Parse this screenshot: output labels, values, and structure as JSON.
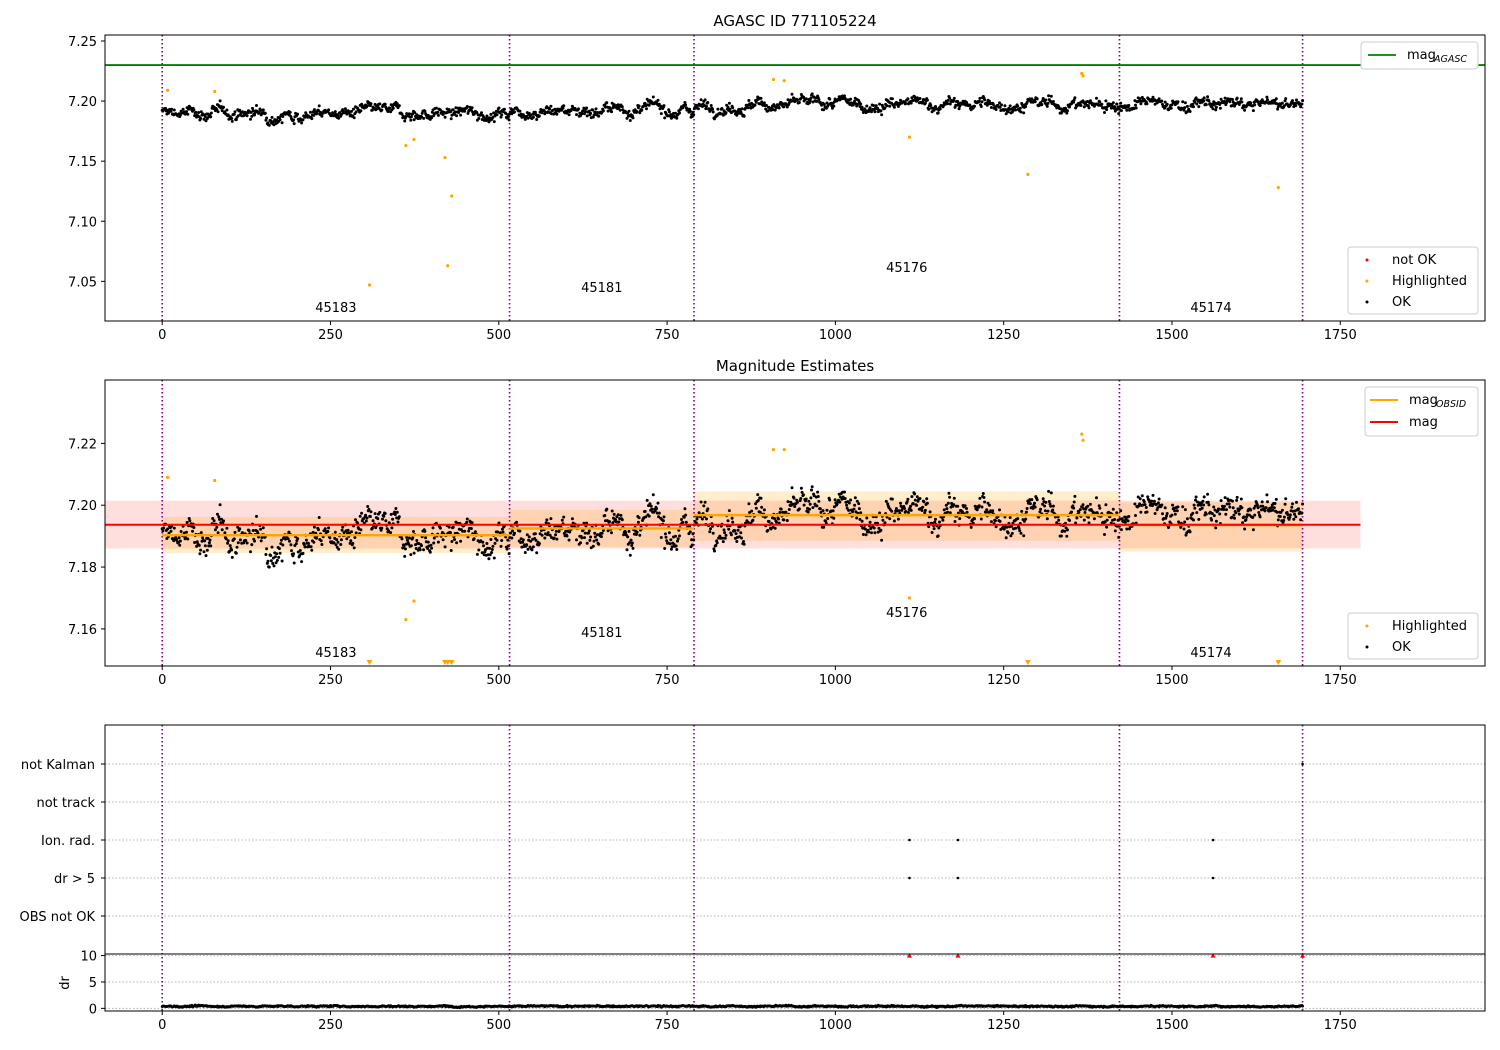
{
  "chart_data": [
    {
      "type": "scatter",
      "title": "AGASC ID 771105224",
      "xlim": [
        -85,
        1965
      ],
      "ylim": [
        7.017,
        7.255
      ],
      "xticks": [
        0,
        250,
        500,
        750,
        1000,
        1250,
        1500,
        1750
      ],
      "yticks": [
        7.05,
        7.1,
        7.15,
        7.2,
        7.25
      ],
      "ytick_labels": [
        "7.05",
        "7.10",
        "7.15",
        "7.20",
        "7.25"
      ],
      "hlines": [
        {
          "name": "mag_AGASC",
          "y": 7.23,
          "color": "#008000"
        }
      ],
      "legend_top": {
        "position": "top-right",
        "entries": [
          {
            "label": "mag",
            "sub": "AGASC",
            "color": "#008000",
            "kind": "line"
          }
        ]
      },
      "legend_bottom": {
        "position": "bottom-right",
        "entries": [
          {
            "label": "not OK",
            "color": "#ff0000",
            "kind": "dot"
          },
          {
            "label": "Highlighted",
            "color": "#ffa500",
            "kind": "dot"
          },
          {
            "label": "OK",
            "color": "#000000",
            "kind": "dot"
          }
        ]
      },
      "highlighted": {
        "x": [
          8,
          78,
          308,
          362,
          374,
          420,
          424,
          430,
          908,
          924,
          1110,
          1286,
          1366,
          1368,
          1658
        ],
        "y": [
          7.209,
          7.208,
          7.047,
          7.163,
          7.168,
          7.153,
          7.063,
          7.121,
          7.218,
          7.217,
          7.17,
          7.139,
          7.223,
          7.221,
          7.128
        ]
      },
      "ok_series": {
        "n_points": 1694,
        "x_range": [
          0,
          1694
        ],
        "segment_means": [
          7.19,
          7.193,
          7.197,
          7.197,
          7.194
        ],
        "spread": 0.006
      }
    },
    {
      "type": "scatter",
      "title": "Magnitude Estimates",
      "xlim": [
        -85,
        1965
      ],
      "ylim": [
        7.148,
        7.2405
      ],
      "xticks": [
        0,
        250,
        500,
        750,
        1000,
        1250,
        1500,
        1750
      ],
      "yticks": [
        7.16,
        7.18,
        7.2,
        7.22
      ],
      "ytick_labels": [
        "7.16",
        "7.18",
        "7.20",
        "7.22"
      ],
      "mag": {
        "value": 7.1937,
        "band_outer": [
          7.186,
          7.2015
        ],
        "color": "#ff0000",
        "x_end": 1780
      },
      "mag_obsid": [
        {
          "obsid": "45183",
          "x0": 0,
          "x1": 516,
          "value": 7.1903,
          "band": [
            7.1845,
            7.1962
          ]
        },
        {
          "obsid": "45181",
          "x0": 516,
          "x1": 790,
          "value": 7.1925,
          "band": [
            7.1865,
            7.1985
          ]
        },
        {
          "obsid": "45176",
          "x0": 790,
          "x1": 1422,
          "value": 7.1968,
          "band": [
            7.1885,
            7.2045
          ]
        },
        {
          "obsid": "45174",
          "x0": 1422,
          "x1": 1694,
          "value": 7.1936,
          "band": [
            7.185,
            7.201
          ]
        }
      ],
      "legend_top": {
        "position": "top-right",
        "entries": [
          {
            "label": "mag",
            "sub": "OBSID",
            "color": "#ffa500",
            "kind": "line"
          },
          {
            "label": "mag",
            "sub": "",
            "color": "#ff0000",
            "kind": "line"
          }
        ]
      },
      "legend_bottom": {
        "position": "bottom-right",
        "entries": [
          {
            "label": "Highlighted",
            "color": "#ffa500",
            "kind": "dot"
          },
          {
            "label": "OK",
            "color": "#000000",
            "kind": "dot"
          }
        ]
      },
      "highlighted": {
        "x": [
          8,
          78,
          362,
          374,
          908,
          924,
          1110,
          1366,
          1368
        ],
        "y": [
          7.209,
          7.208,
          7.163,
          7.169,
          7.218,
          7.218,
          7.17,
          7.223,
          7.221
        ]
      },
      "below_range_markers": {
        "x": [
          308,
          420,
          424,
          430,
          1286,
          1658
        ]
      },
      "ok_series": {
        "n_points": 1694,
        "x_range": [
          0,
          1694
        ],
        "segment_means": [
          7.19,
          7.193,
          7.197,
          7.197,
          7.194
        ],
        "spread": 0.006
      }
    },
    {
      "type": "scatter",
      "title": "",
      "xlim": [
        -85,
        1965
      ],
      "flag_rows": [
        "not Kalman",
        "not track",
        "Ion. rad.",
        "dr > 5",
        "OBS not OK"
      ],
      "flag_points": [
        {
          "row": "not Kalman",
          "x": [
            1694
          ]
        },
        {
          "row": "not track",
          "x": []
        },
        {
          "row": "Ion. rad.",
          "x": [
            1110,
            1182,
            1561
          ]
        },
        {
          "row": "dr > 5",
          "x": [
            1110,
            1182,
            1561
          ]
        },
        {
          "row": "OBS not OK",
          "x": []
        }
      ],
      "dr": {
        "ylabel": "dr",
        "yticks": [
          0,
          5,
          10
        ],
        "ytick_labels": [
          "0",
          "5",
          "10"
        ],
        "ylim": [
          -0.5,
          10.3
        ],
        "clipped_x": [
          1110,
          1182,
          1561,
          1694
        ],
        "typical_value": 0.4
      },
      "xticks": [
        0,
        250,
        500,
        750,
        1000,
        1250,
        1500,
        1750
      ]
    }
  ],
  "obsid_boundaries": [
    0,
    516,
    790,
    1422,
    1694
  ],
  "obsid_labels": [
    {
      "text": "45183",
      "x": 258
    },
    {
      "text": "45181",
      "x": 653
    },
    {
      "text": "45176",
      "x": 1106
    },
    {
      "text": "45174",
      "x": 1558
    }
  ],
  "colors": {
    "ok": "#000000",
    "highlighted": "#ffa500",
    "not_ok": "#ff0000",
    "boundary": "#800080",
    "agasc": "#008000",
    "mag": "#ff0000",
    "mag_obsid": "#ffa500"
  }
}
